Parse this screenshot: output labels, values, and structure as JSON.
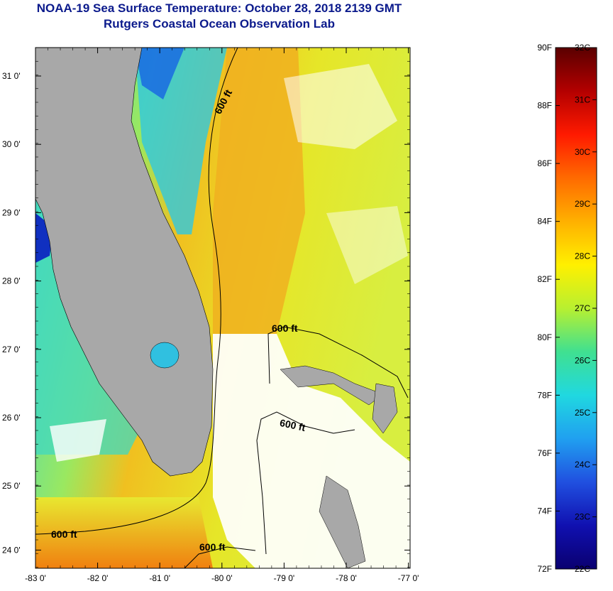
{
  "title": "NOAA-19 Sea Surface Temperature:  October 28, 2018 2139 GMT",
  "subtitle": "Rutgers Coastal Ocean Observation Lab",
  "lat_labels": [
    "31 0'",
    "30 0'",
    "29 0'",
    "28 0'",
    "27 0'",
    "26 0'",
    "25 0'",
    "24 0'"
  ],
  "lon_labels": [
    "-83 0'",
    "-82 0'",
    "-81 0'",
    "-80 0'",
    "-79 0'",
    "-78 0'",
    "-77 0'"
  ],
  "contour_label": "600 ft",
  "colorbar": {
    "fahrenheit": [
      "90F",
      "88F",
      "86F",
      "84F",
      "82F",
      "80F",
      "78F",
      "76F",
      "74F",
      "72F"
    ],
    "celsius": [
      "32C",
      "31C",
      "30C",
      "29C",
      "28C",
      "27C",
      "26C",
      "25C",
      "24C",
      "23C",
      "22C"
    ],
    "colors": [
      "#5a0000",
      "#b30000",
      "#ff1a00",
      "#ff6a00",
      "#ffb000",
      "#fff000",
      "#b8f030",
      "#40e090",
      "#20d8e0",
      "#20a0f0",
      "#2050e0",
      "#1010b0",
      "#0a0070"
    ]
  },
  "colors": {
    "land": "#a8a8a8",
    "cloud": "#ffffff",
    "title": "#0b1a8c"
  }
}
